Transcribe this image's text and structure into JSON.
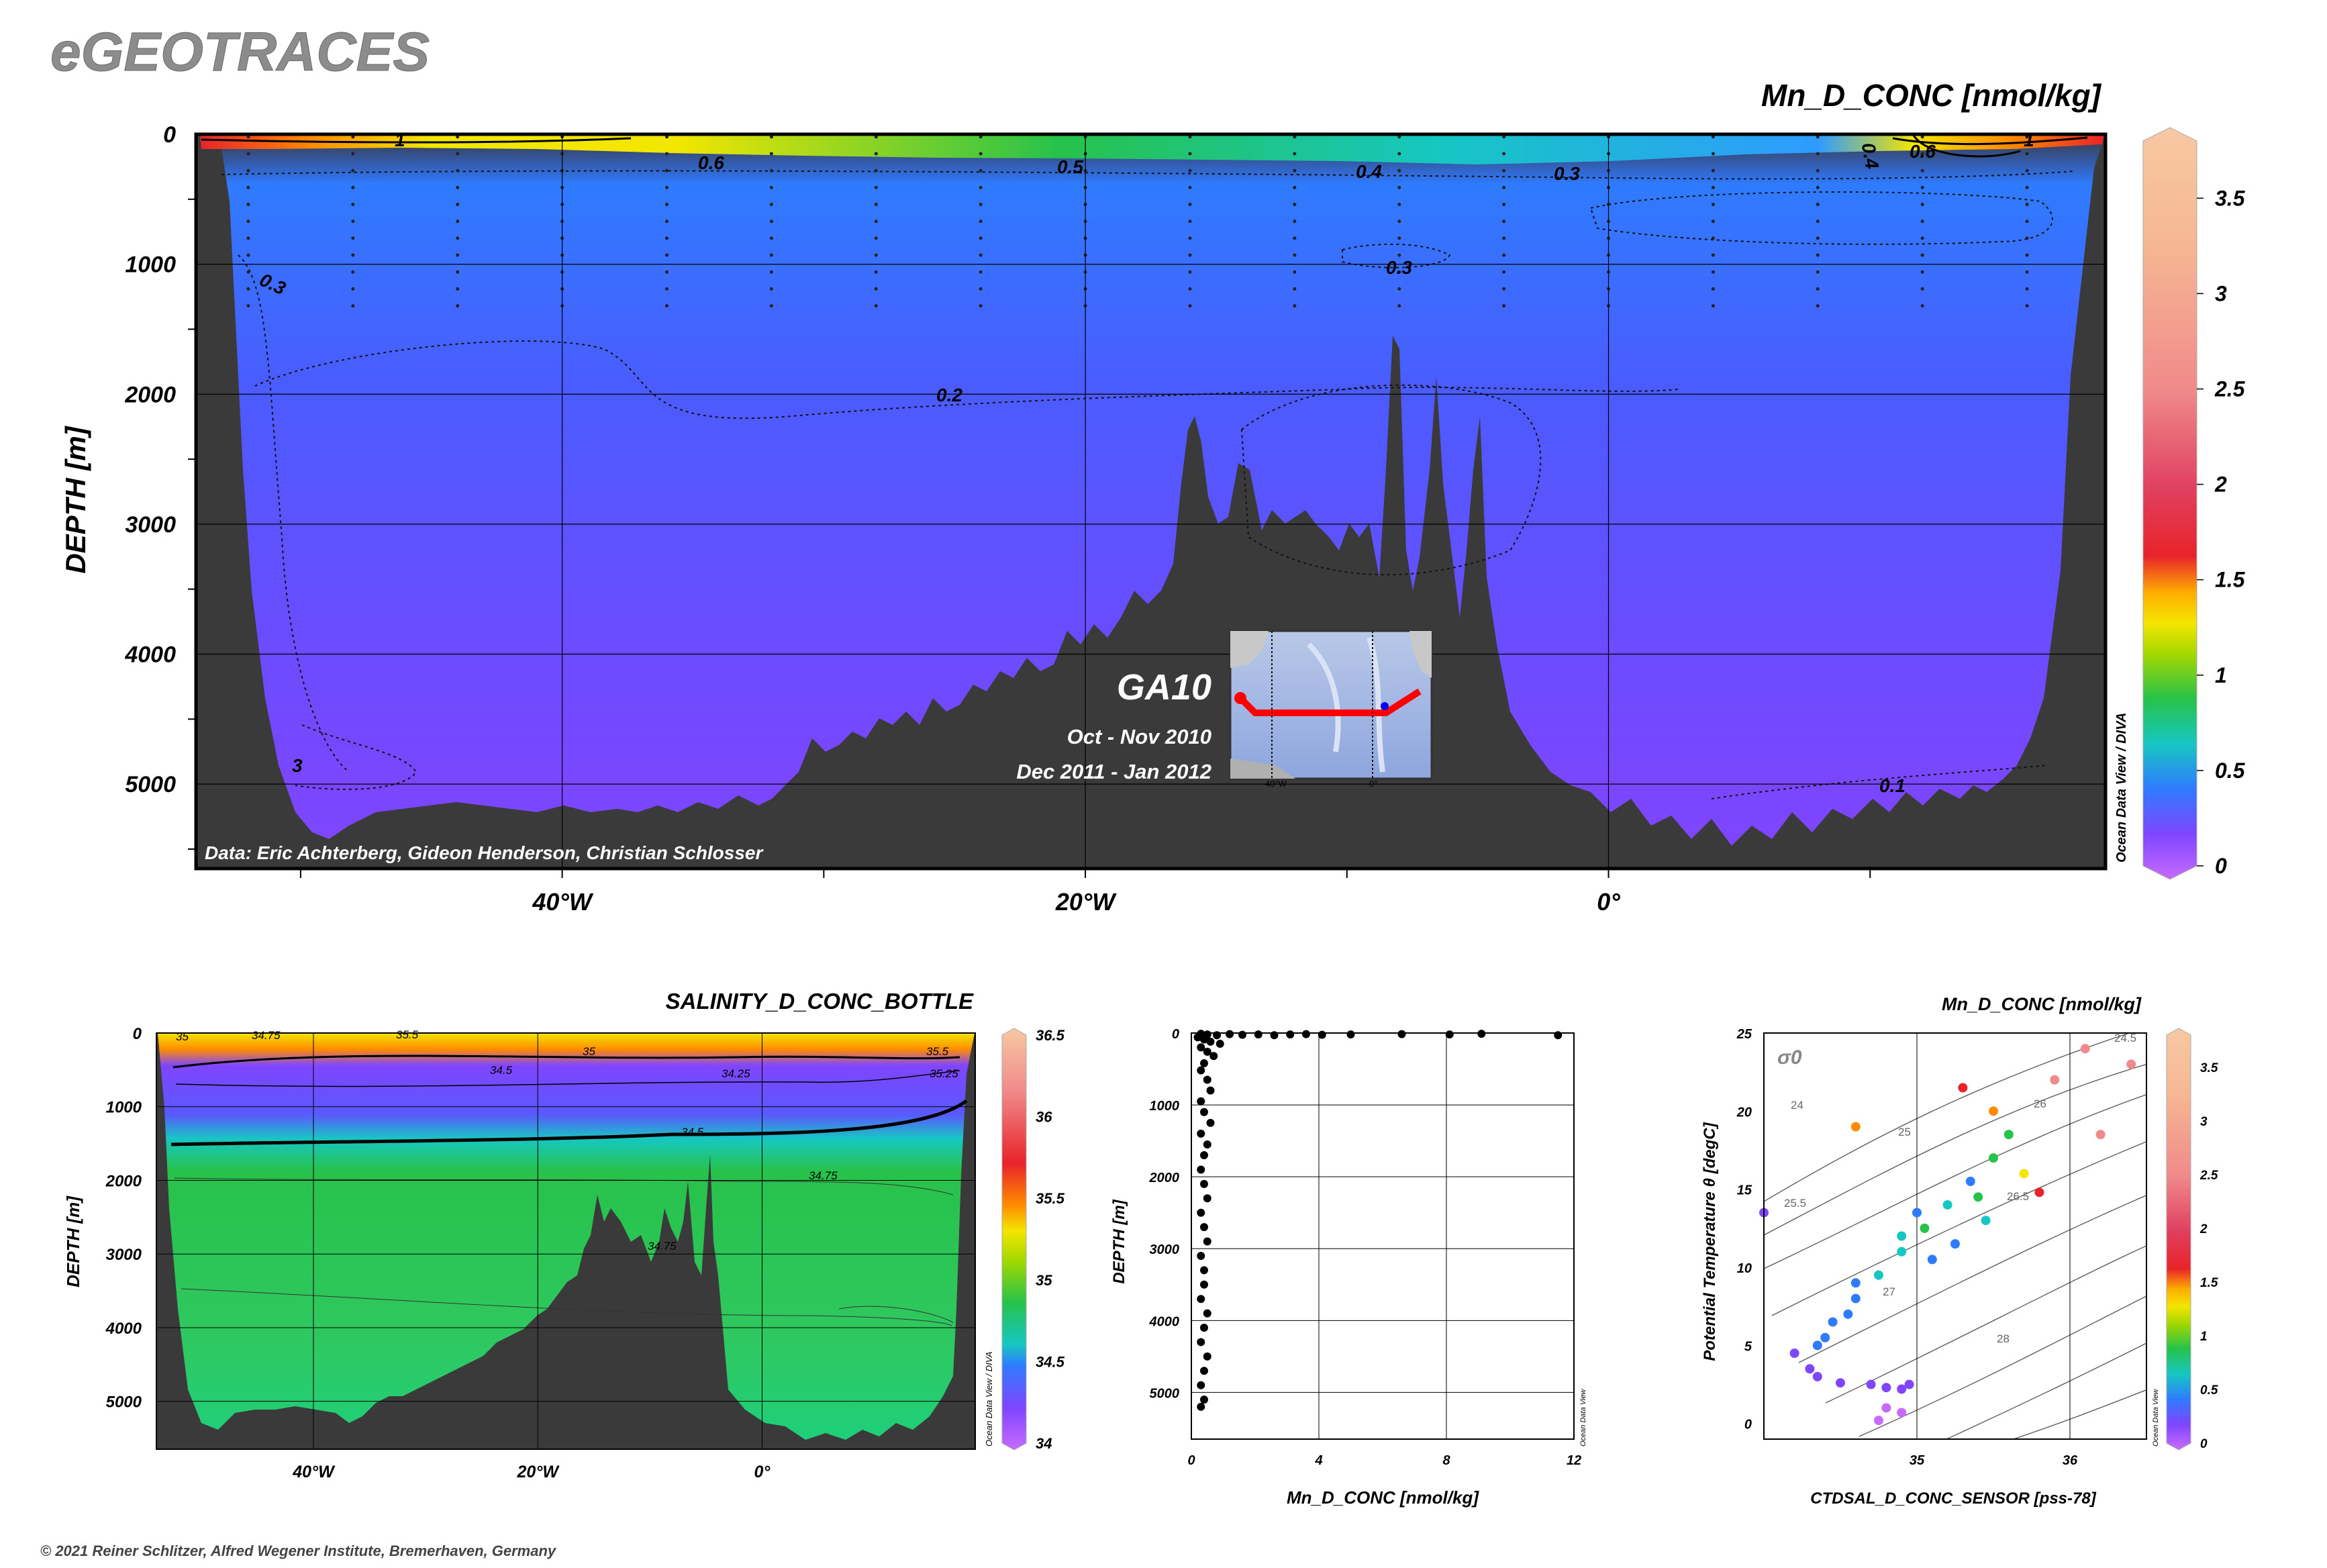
{
  "brand": "eGEOTRACES",
  "copyright": "© 2021 Reiner Schlitzer, Alfred Wegener Institute, Bremerhaven, Germany",
  "colors": {
    "panel_bg": "#3a3a3a",
    "low": "#7f45ff",
    "mid_blue": "#2f7bff",
    "green": "#27c24a",
    "yellow": "#f3e600",
    "orange": "#ff8c00",
    "red": "#e8232a",
    "peach": "#f7c8a3"
  },
  "main_section": {
    "title": "Mn_D_CONC [nmol/kg]",
    "ylabel": "DEPTH [m]",
    "credit": "Data: Eric Achterberg, Gideon Henderson, Christian Schlosser",
    "vertical_credit": "Ocean Data View / DIVA",
    "cruise": "GA10",
    "dates": [
      "Oct - Nov 2010",
      "Dec 2011 - Jan 2012"
    ]
  },
  "chart_data": [
    {
      "id": "mn-section",
      "type": "heatmap",
      "title": "Mn_D_CONC [nmol/kg]",
      "xlabel": "",
      "ylabel": "DEPTH [m]",
      "x_ticks": [
        "40°W",
        "20°W",
        "0°"
      ],
      "x_tick_values": [
        -40,
        -20,
        0
      ],
      "xlim": [
        -54,
        19
      ],
      "y_ticks": [
        0,
        1000,
        2000,
        3000,
        4000,
        5000
      ],
      "ylim": [
        5650,
        0
      ],
      "colorbar": {
        "ticks": [
          "0",
          "0.5",
          "1",
          "1.5",
          "2",
          "2.5",
          "3",
          "3.5"
        ],
        "range": [
          0,
          3.8
        ]
      },
      "contour_labels": [
        "1",
        "0.6",
        "0.5",
        "0.4",
        "0.3",
        "0.4",
        "0.6",
        "1",
        "0.3",
        "0.3",
        "0.2",
        "0.1",
        "3"
      ]
    },
    {
      "id": "salinity-section",
      "type": "heatmap",
      "title": "SALINITY_D_CONC_BOTTLE",
      "ylabel": "DEPTH [m]",
      "x_ticks": [
        "40°W",
        "20°W",
        "0°"
      ],
      "x_tick_values": [
        -40,
        -20,
        0
      ],
      "xlim": [
        -54,
        19
      ],
      "y_ticks": [
        0,
        1000,
        2000,
        3000,
        4000,
        5000
      ],
      "ylim": [
        5650,
        0
      ],
      "colorbar": {
        "ticks": [
          "34",
          "34.5",
          "35",
          "35.5",
          "36",
          "36.5"
        ],
        "range": [
          34,
          36.5
        ]
      },
      "contour_labels": [
        "35",
        "34.75",
        "35.5",
        "35",
        "34.5",
        "34.25",
        "35.5",
        "35.25",
        "34.5",
        "34.75",
        "34.75"
      ],
      "vertical_credit": "Ocean Data View / DIVA"
    },
    {
      "id": "mn-profile",
      "type": "scatter",
      "xlabel": "Mn_D_CONC [nmol/kg]",
      "ylabel": "DEPTH [m]",
      "xlim": [
        0,
        12
      ],
      "x_ticks": [
        0,
        4,
        8,
        12
      ],
      "ylim": [
        5650,
        0
      ],
      "y_ticks": [
        0,
        1000,
        2000,
        3000,
        4000,
        5000
      ],
      "vertical_credit": "Ocean Data View",
      "points": [
        [
          0.3,
          10
        ],
        [
          0.5,
          20
        ],
        [
          0.8,
          30
        ],
        [
          1.2,
          15
        ],
        [
          1.6,
          25
        ],
        [
          2.1,
          20
        ],
        [
          2.6,
          30
        ],
        [
          3.1,
          20
        ],
        [
          3.6,
          15
        ],
        [
          4.1,
          25
        ],
        [
          5.0,
          20
        ],
        [
          6.6,
          15
        ],
        [
          8.1,
          20
        ],
        [
          9.1,
          10
        ],
        [
          11.5,
          30
        ],
        [
          0.2,
          60
        ],
        [
          0.4,
          90
        ],
        [
          0.6,
          120
        ],
        [
          0.9,
          150
        ],
        [
          0.3,
          200
        ],
        [
          0.5,
          260
        ],
        [
          0.7,
          320
        ],
        [
          0.4,
          420
        ],
        [
          0.3,
          520
        ],
        [
          0.5,
          650
        ],
        [
          0.6,
          800
        ],
        [
          0.3,
          950
        ],
        [
          0.4,
          1100
        ],
        [
          0.6,
          1250
        ],
        [
          0.3,
          1400
        ],
        [
          0.5,
          1550
        ],
        [
          0.4,
          1700
        ],
        [
          0.3,
          1900
        ],
        [
          0.4,
          2100
        ],
        [
          0.5,
          2300
        ],
        [
          0.3,
          2500
        ],
        [
          0.4,
          2700
        ],
        [
          0.5,
          2900
        ],
        [
          0.3,
          3100
        ],
        [
          0.4,
          3300
        ],
        [
          0.4,
          3500
        ],
        [
          0.3,
          3700
        ],
        [
          0.5,
          3900
        ],
        [
          0.4,
          4100
        ],
        [
          0.3,
          4300
        ],
        [
          0.5,
          4500
        ],
        [
          0.4,
          4700
        ],
        [
          0.3,
          4900
        ],
        [
          0.4,
          5100
        ],
        [
          0.3,
          5200
        ]
      ]
    },
    {
      "id": "ts-diagram",
      "type": "scatter",
      "title": "Mn_D_CONC [nmol/kg]",
      "xlabel": "CTDSAL_D_CONC_SENSOR [pss-78]",
      "ylabel": "Potential Temperature θ [degC]",
      "xlim": [
        34.0,
        36.5
      ],
      "x_ticks": [
        35,
        36
      ],
      "ylim": [
        -1,
        25
      ],
      "y_ticks": [
        0,
        5,
        10,
        15,
        20,
        25
      ],
      "isopycnal_label": "σ0",
      "isopycnals": [
        "24",
        "24.5",
        "25",
        "25.5",
        "26",
        "26.5",
        "27",
        "28"
      ],
      "colorbar": {
        "ticks": [
          "0",
          "0.5",
          "1",
          "1.5",
          "2",
          "2.5",
          "3",
          "3.5"
        ],
        "range": [
          0,
          3.8
        ]
      },
      "vertical_credit": "Ocean Data View",
      "points": [
        [
          34.3,
          3.5,
          0.2
        ],
        [
          34.35,
          3.0,
          0.3
        ],
        [
          34.5,
          2.6,
          0.2
        ],
        [
          34.7,
          2.5,
          0.2
        ],
        [
          34.8,
          2.3,
          0.2
        ],
        [
          34.9,
          2.2,
          0.2
        ],
        [
          34.95,
          2.5,
          0.2
        ],
        [
          34.8,
          1.0,
          0.1
        ],
        [
          34.9,
          0.7,
          0.1
        ],
        [
          34.75,
          0.2,
          0.1
        ],
        [
          34.2,
          4.5,
          0.3
        ],
        [
          34.35,
          5.0,
          0.4
        ],
        [
          34.45,
          6.5,
          0.4
        ],
        [
          34.6,
          8.0,
          0.5
        ],
        [
          34.75,
          9.5,
          0.6
        ],
        [
          34.9,
          11.0,
          0.7
        ],
        [
          35.05,
          12.5,
          0.8
        ],
        [
          35.2,
          14.0,
          0.6
        ],
        [
          35.35,
          15.5,
          0.5
        ],
        [
          35.5,
          17.0,
          0.8
        ],
        [
          35.6,
          18.5,
          1.0
        ],
        [
          35.5,
          20.0,
          1.4
        ],
        [
          35.3,
          21.5,
          2.0
        ],
        [
          35.8,
          14.8,
          2.5
        ],
        [
          35.7,
          16.0,
          1.2
        ],
        [
          35.0,
          13.5,
          0.5
        ],
        [
          34.9,
          12.0,
          0.6
        ],
        [
          35.4,
          14.5,
          0.9
        ],
        [
          36.2,
          18.5,
          3.0
        ],
        [
          35.9,
          22.0,
          3.2
        ],
        [
          36.4,
          23.0,
          3.4
        ],
        [
          36.1,
          24.0,
          3.6
        ],
        [
          34.6,
          19.0,
          1.5
        ],
        [
          34.0,
          13.5,
          0.3
        ],
        [
          35.1,
          10.5,
          0.5
        ],
        [
          35.25,
          11.5,
          0.5
        ],
        [
          35.45,
          13.0,
          0.6
        ],
        [
          34.55,
          7.0,
          0.4
        ],
        [
          34.4,
          5.5,
          0.4
        ],
        [
          34.6,
          9.0,
          0.5
        ]
      ]
    }
  ],
  "map_inset": {
    "label_left": "40°W",
    "label_right": "0°"
  }
}
